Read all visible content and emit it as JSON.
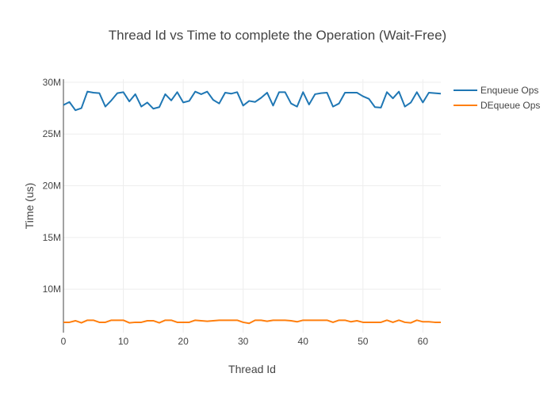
{
  "chart_data": {
    "type": "line",
    "title": "Thread Id vs Time to complete the Operation (Wait-Free)",
    "xlabel": "Thread Id",
    "ylabel": "Time (us)",
    "xlim": [
      0,
      63
    ],
    "ylim": [
      5800000,
      30300000
    ],
    "xticks": [
      0,
      10,
      20,
      30,
      40,
      50,
      60
    ],
    "xtick_labels": [
      "0",
      "10",
      "20",
      "30",
      "40",
      "50",
      "60"
    ],
    "yticks": [
      10000000,
      15000000,
      20000000,
      25000000,
      30000000
    ],
    "ytick_labels": [
      "10M",
      "15M",
      "20M",
      "25M",
      "30M"
    ],
    "grid": true,
    "legend_position": "top-right",
    "x": [
      0,
      1,
      2,
      3,
      4,
      5,
      6,
      7,
      8,
      9,
      10,
      11,
      12,
      13,
      14,
      15,
      16,
      17,
      18,
      19,
      20,
      21,
      22,
      23,
      24,
      25,
      26,
      27,
      28,
      29,
      30,
      31,
      32,
      33,
      34,
      35,
      36,
      37,
      38,
      39,
      40,
      41,
      42,
      43,
      44,
      45,
      46,
      47,
      48,
      49,
      50,
      51,
      52,
      53,
      54,
      55,
      56,
      57,
      58,
      59,
      60,
      61,
      62,
      63
    ],
    "series": [
      {
        "name": "Enqueue Ops",
        "color": "#1f77b4",
        "values": [
          27800000,
          28100000,
          27300000,
          27500000,
          29100000,
          29000000,
          28950000,
          27650000,
          28250000,
          28950000,
          29050000,
          28150000,
          28850000,
          27650000,
          28050000,
          27450000,
          27600000,
          28850000,
          28250000,
          29050000,
          28050000,
          28200000,
          29100000,
          28850000,
          29100000,
          28300000,
          27950000,
          29000000,
          28900000,
          29050000,
          27750000,
          28200000,
          28100000,
          28500000,
          29000000,
          27750000,
          29050000,
          29050000,
          27950000,
          27650000,
          29050000,
          27850000,
          28850000,
          28950000,
          29000000,
          27650000,
          27950000,
          29000000,
          29000000,
          29000000,
          28650000,
          28400000,
          27600000,
          27550000,
          29050000,
          28450000,
          29100000,
          27650000,
          28050000,
          29050000,
          28050000,
          29000000,
          28950000,
          28900000
        ]
      },
      {
        "name": "DEqueue Ops",
        "color": "#ff7f0e",
        "values": [
          6800000,
          6800000,
          6950000,
          6750000,
          7000000,
          7000000,
          6800000,
          6800000,
          7000000,
          7000000,
          7000000,
          6750000,
          6800000,
          6800000,
          6950000,
          6950000,
          6750000,
          7000000,
          7000000,
          6800000,
          6800000,
          6800000,
          7000000,
          6950000,
          6900000,
          6950000,
          7000000,
          7000000,
          7000000,
          7000000,
          6800000,
          6700000,
          7000000,
          7000000,
          6900000,
          7000000,
          7000000,
          7000000,
          6950000,
          6850000,
          7000000,
          7000000,
          7000000,
          7000000,
          7000000,
          6800000,
          7000000,
          7000000,
          6850000,
          6950000,
          6800000,
          6800000,
          6800000,
          6800000,
          7000000,
          6800000,
          7000000,
          6800000,
          6750000,
          7000000,
          6850000,
          6850000,
          6800000,
          6800000
        ]
      }
    ]
  }
}
